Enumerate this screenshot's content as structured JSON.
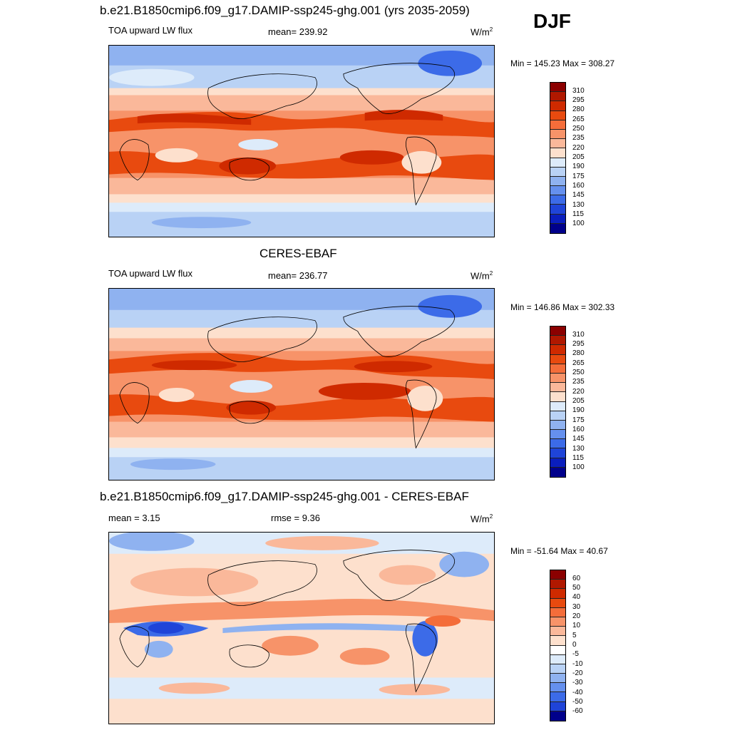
{
  "season": "DJF",
  "panels": [
    {
      "title": "b.e21.B1850cmip6.f09_g17.DAMIP-ssp245-ghg.001 (yrs 2035-2059)",
      "left_label": "TOA upward LW flux",
      "center_label": "mean= 239.92",
      "units": "W/m",
      "units_exp": "2",
      "minmax": "Min = 145.23 Max = 308.27"
    },
    {
      "title": "CERES-EBAF",
      "left_label": "TOA upward LW flux",
      "center_label": "mean= 236.77",
      "units": "W/m",
      "units_exp": "2",
      "minmax": "Min = 146.86 Max = 302.33"
    },
    {
      "title": "b.e21.B1850cmip6.f09_g17.DAMIP-ssp245-ghg.001 - CERES-EBAF",
      "left_label": "mean =   3.15",
      "center_label": "rmse =   9.36",
      "units": "W/m",
      "units_exp": "2",
      "minmax": "Min = -51.64 Max =  40.67"
    }
  ],
  "colorbars": {
    "absolute": {
      "labels": [
        "310",
        "295",
        "280",
        "265",
        "250",
        "235",
        "220",
        "205",
        "190",
        "175",
        "160",
        "145",
        "130",
        "115",
        "100"
      ],
      "colors": [
        "#8b0000",
        "#b01800",
        "#cf2a00",
        "#e84a0f",
        "#f46d3a",
        "#f79369",
        "#fab89a",
        "#fde0cd",
        "#ddebfa",
        "#b9d2f5",
        "#8fb2f0",
        "#6590ee",
        "#3c6be8",
        "#1f44d8",
        "#0a1ebd",
        "#00008b"
      ]
    },
    "difference": {
      "labels": [
        "60",
        "50",
        "40",
        "30",
        "20",
        "10",
        "5",
        "0",
        "-5",
        "-10",
        "-20",
        "-30",
        "-40",
        "-50",
        "-60"
      ],
      "colors": [
        "#8b0000",
        "#b01800",
        "#cf2a00",
        "#e84a0f",
        "#f46d3a",
        "#f79369",
        "#fab89a",
        "#fde0cd",
        "#ffffff",
        "#ddebfa",
        "#b9d2f5",
        "#8fb2f0",
        "#6590ee",
        "#3c6be8",
        "#1f44d8",
        "#00008b"
      ]
    }
  }
}
